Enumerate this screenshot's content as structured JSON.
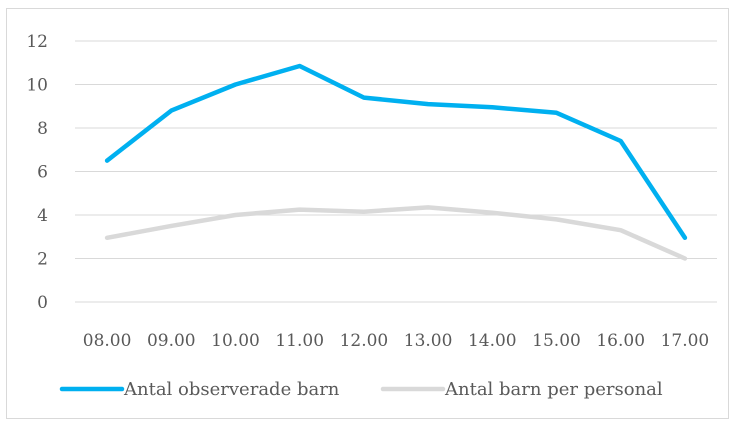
{
  "chart_data": {
    "type": "line",
    "categories": [
      "08.00",
      "09.00",
      "10.00",
      "11.00",
      "12.00",
      "13.00",
      "14.00",
      "15.00",
      "16.00",
      "17.00"
    ],
    "series": [
      {
        "name": "Antal observerade barn",
        "color": "#00B0F0",
        "values": [
          6.5,
          8.8,
          10.0,
          10.85,
          9.4,
          9.1,
          8.95,
          8.7,
          7.4,
          2.95
        ]
      },
      {
        "name": "Antal barn per personal",
        "color": "#D9D9D9",
        "values": [
          2.95,
          3.5,
          4.0,
          4.25,
          4.15,
          4.35,
          4.1,
          3.8,
          3.3,
          2.0
        ]
      }
    ],
    "ylim": [
      0,
      12
    ],
    "yticks": [
      "0",
      "2",
      "4",
      "6",
      "8",
      "10",
      "12"
    ],
    "grid": true,
    "legend": "bottom"
  }
}
